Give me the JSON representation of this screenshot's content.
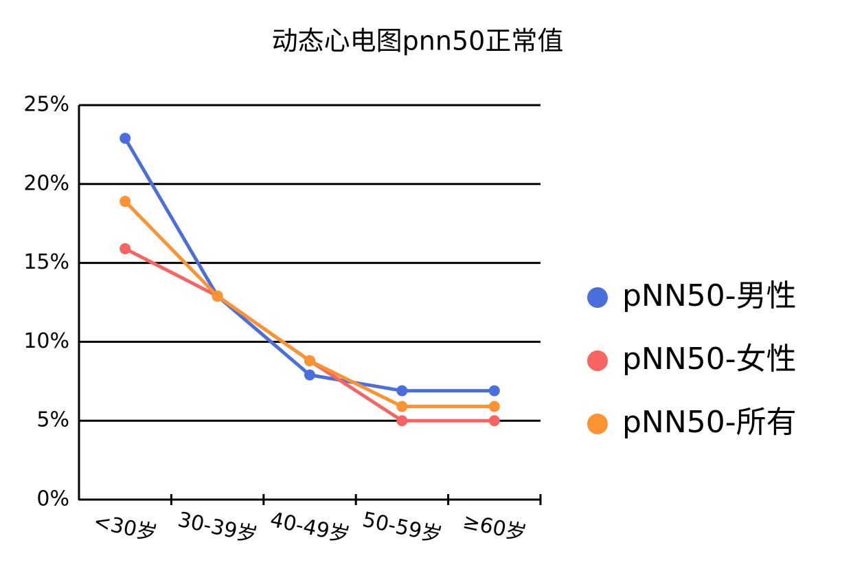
{
  "chart_data": {
    "type": "line",
    "title": "动态心电图pnn50正常值",
    "categories": [
      "<30岁",
      "30-39岁",
      "40-49岁",
      "50-59岁",
      "≥60岁"
    ],
    "series": [
      {
        "name": "pNN50-男性",
        "color": "#4a6fdc",
        "values": [
          22.9,
          12.9,
          7.9,
          6.9,
          6.9
        ]
      },
      {
        "name": "pNN50-女性",
        "color": "#f86462",
        "values": [
          15.9,
          12.9,
          8.8,
          5.0,
          5.0
        ]
      },
      {
        "name": "pNN50-所有",
        "color": "#fb9332",
        "values": [
          18.9,
          12.9,
          8.8,
          5.9,
          5.9
        ]
      }
    ],
    "ylim": [
      0,
      25
    ],
    "yticks": [
      {
        "value": 0,
        "label": "0%"
      },
      {
        "value": 5,
        "label": "5%"
      },
      {
        "value": 10,
        "label": "10%"
      },
      {
        "value": 15,
        "label": "15%"
      },
      {
        "value": 20,
        "label": "20%"
      },
      {
        "value": 25,
        "label": "25%"
      }
    ],
    "grid": true,
    "legend": "right"
  }
}
